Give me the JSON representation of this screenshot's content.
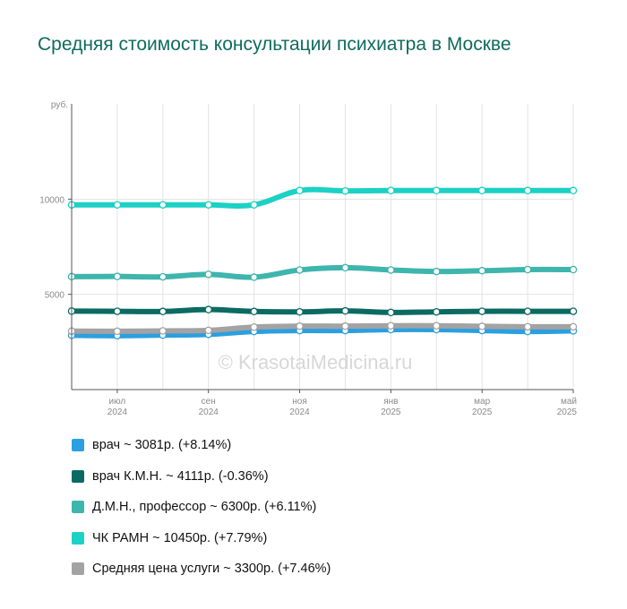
{
  "title": "Средняя стоимость консультации психиатра в Москве",
  "watermark": "© KrasotaiMedicina.ru",
  "chart_data": {
    "type": "line",
    "title": "Средняя стоимость консультации психиатра в Москве",
    "ylabel": "руб.",
    "ylim": [
      0,
      15000
    ],
    "yticks": [
      5000,
      10000
    ],
    "grid": true,
    "legend_position": "bottom",
    "x": [
      "2024-06",
      "2024-07",
      "2024-08",
      "2024-09",
      "2024-10",
      "2024-11",
      "2024-12",
      "2025-01",
      "2025-02",
      "2025-03",
      "2025-04",
      "2025-05"
    ],
    "x_tick_labels": [
      {
        "month": "июл",
        "year": "2024",
        "index": 1
      },
      {
        "month": "сен",
        "year": "2024",
        "index": 3
      },
      {
        "month": "ноя",
        "year": "2024",
        "index": 5
      },
      {
        "month": "янв",
        "year": "2025",
        "index": 7
      },
      {
        "month": "мар",
        "year": "2025",
        "index": 9
      },
      {
        "month": "май",
        "year": "2025",
        "index": 11
      }
    ],
    "series": [
      {
        "name": "врач",
        "legend": "врач ~ 3081р. (+8.14%)",
        "color": "#2b9fe0",
        "values": [
          2850,
          2830,
          2860,
          2900,
          3050,
          3100,
          3100,
          3150,
          3150,
          3100,
          3050,
          3081
        ]
      },
      {
        "name": "врач К.М.Н.",
        "legend": "врач К.М.Н. ~ 4111р. (-0.36%)",
        "color": "#0b6b63",
        "values": [
          4120,
          4110,
          4100,
          4200,
          4100,
          4080,
          4130,
          4050,
          4080,
          4110,
          4110,
          4111
        ]
      },
      {
        "name": "Д.М.Н., профессор",
        "legend": "Д.М.Н., профессор ~ 6300р. (+6.11%)",
        "color": "#3eb5ad",
        "values": [
          5930,
          5940,
          5920,
          6050,
          5900,
          6280,
          6400,
          6280,
          6200,
          6240,
          6300,
          6300
        ]
      },
      {
        "name": "ЧК РАМН",
        "legend": "ЧК РАМН ~ 10450р. (+7.79%)",
        "color": "#1cd1c5",
        "values": [
          9700,
          9700,
          9700,
          9700,
          9700,
          10450,
          10430,
          10450,
          10450,
          10450,
          10450,
          10450
        ]
      },
      {
        "name": "Средняя цена услуги",
        "legend": "Средняя цена услуги ~ 3300р. (+7.46%)",
        "color": "#a3a3a3",
        "values": [
          3070,
          3060,
          3080,
          3110,
          3280,
          3330,
          3330,
          3350,
          3350,
          3320,
          3300,
          3300
        ]
      }
    ]
  }
}
